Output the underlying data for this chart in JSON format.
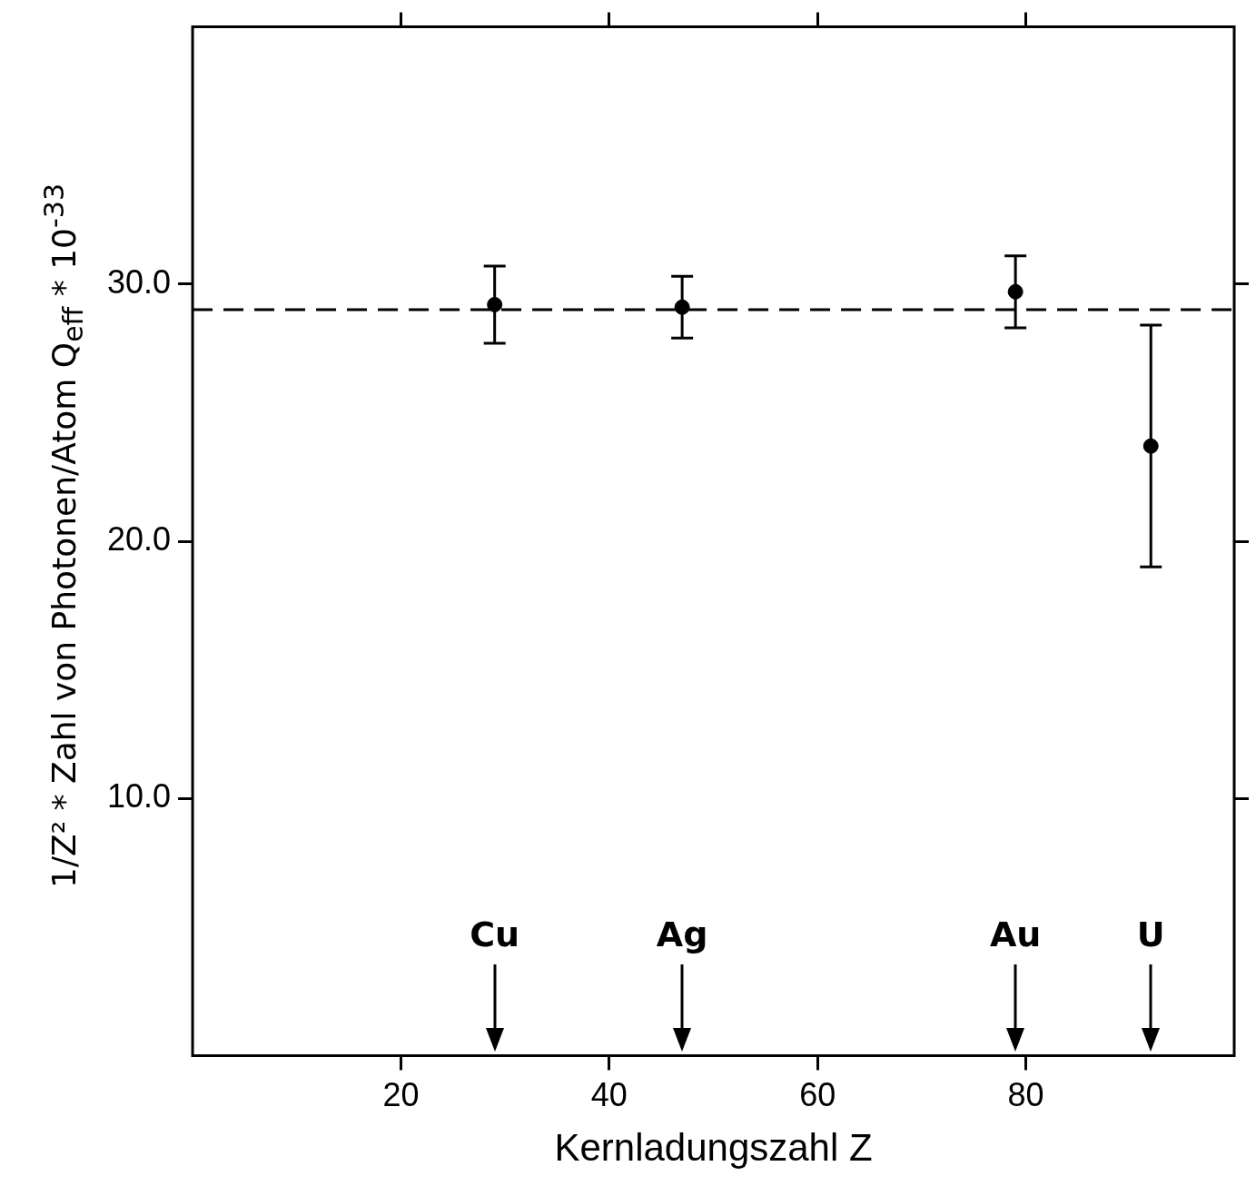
{
  "chart_data": {
    "type": "scatter",
    "xlabel": "Kernladungszahl Z",
    "ylabel": "1/Z² * Zahl von Photonen/Atom Q$_{eff}$ * 10$^{-33}$",
    "x": [
      29,
      47,
      79,
      92
    ],
    "series": [
      {
        "color": "#000000",
        "values": [
          29.2,
          29.1,
          29.7,
          23.7
        ],
        "errors": [
          1.5,
          1.2,
          1.4,
          4.7
        ]
      }
    ],
    "xlim": [
      0,
      100
    ],
    "ylim": [
      0,
      40
    ],
    "xticks": [
      20,
      40,
      60,
      80
    ],
    "yticks": [
      {
        "value": 10,
        "label": "10.0"
      },
      {
        "value": 20,
        "label": "20.0"
      },
      {
        "value": 30,
        "label": "30.0"
      }
    ],
    "ref_lines": [
      {
        "axis": "y",
        "value": 29.0,
        "line_style": "dashed",
        "color": "#000000"
      }
    ],
    "annotations": [
      "Cu",
      "Ag",
      "Au",
      "U"
    ],
    "grid": false,
    "legend": false,
    "marker": "circle"
  }
}
